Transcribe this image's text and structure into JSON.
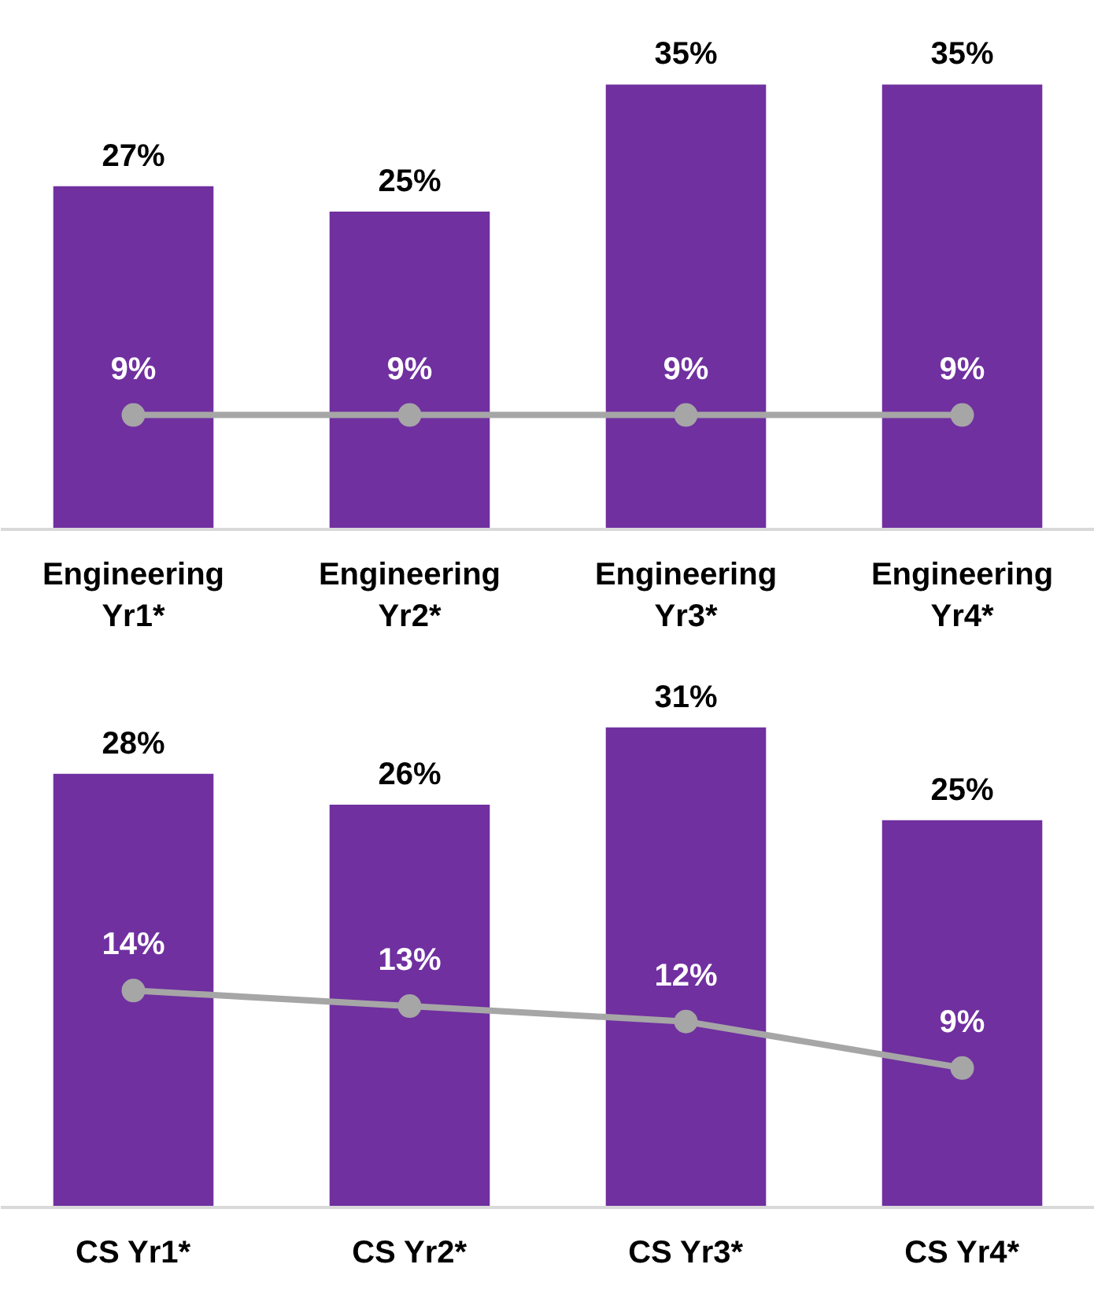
{
  "chart_data": [
    {
      "type": "bar",
      "categories": [
        "Engineering Yr1*",
        "Engineering Yr2*",
        "Engineering Yr3*",
        "Engineering Yr4*"
      ],
      "series": [
        {
          "color": "#7030a0",
          "values": [
            27,
            25,
            35,
            35
          ],
          "value_labels": [
            "27%",
            "25%",
            "35%",
            "35%"
          ]
        },
        {
          "type": "line",
          "color": "#a6a6a6",
          "values": [
            9,
            9,
            9,
            9
          ],
          "value_labels": [
            "9%",
            "9%",
            "9%",
            "9%"
          ]
        }
      ],
      "marker": "circle",
      "line_style": "solid",
      "grid": false,
      "tick_labels": "x"
    },
    {
      "type": "bar",
      "categories": [
        "CS Yr1*",
        "CS Yr2*",
        "CS Yr3*",
        "CS Yr4*"
      ],
      "series": [
        {
          "color": "#7030a0",
          "values": [
            28,
            26,
            31,
            25
          ],
          "value_labels": [
            "28%",
            "26%",
            "31%",
            "25%"
          ]
        },
        {
          "type": "line",
          "color": "#a6a6a6",
          "values": [
            14,
            13,
            12,
            9
          ],
          "value_labels": [
            "14%",
            "13%",
            "12%",
            "9%"
          ]
        }
      ],
      "marker": "circle",
      "line_style": "solid",
      "grid": false,
      "tick_labels": "x"
    }
  ]
}
